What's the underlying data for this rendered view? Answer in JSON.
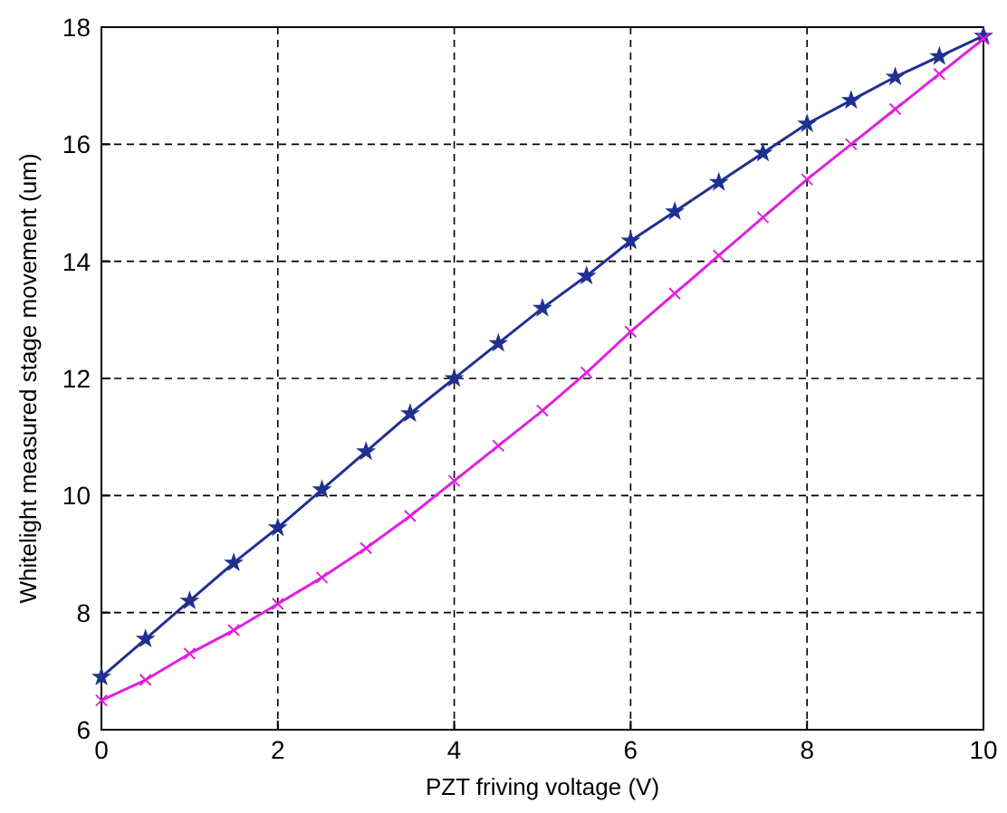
{
  "chart_data": {
    "type": "line",
    "xlabel": "PZT friving voltage (V)",
    "ylabel": "Whitelight measured stage movement (um)",
    "x": [
      0,
      0.5,
      1,
      1.5,
      2,
      2.5,
      3,
      3.5,
      4,
      4.5,
      5,
      5.5,
      6,
      6.5,
      7,
      7.5,
      8,
      8.5,
      9,
      9.5,
      10
    ],
    "series": [
      {
        "color": "#203090",
        "marker": "star",
        "values": [
          6.9,
          7.55,
          8.2,
          8.85,
          9.45,
          10.1,
          10.75,
          11.4,
          12.0,
          12.6,
          13.2,
          13.75,
          14.35,
          14.85,
          15.35,
          15.85,
          16.35,
          16.75,
          17.15,
          17.5,
          17.85
        ]
      },
      {
        "color": "#e020e0",
        "marker": "cross",
        "values": [
          6.5,
          6.85,
          7.3,
          7.7,
          8.15,
          8.6,
          9.1,
          9.65,
          10.25,
          10.85,
          11.45,
          12.1,
          12.8,
          13.45,
          14.1,
          14.75,
          15.4,
          16.0,
          16.6,
          17.2,
          17.8
        ]
      }
    ],
    "xlim": [
      0,
      10
    ],
    "xticks": [
      0,
      2,
      4,
      6,
      8,
      10
    ],
    "ylim": [
      6,
      18
    ],
    "yticks": [
      6,
      8,
      10,
      12,
      14,
      16,
      18
    ],
    "grid": true,
    "line_style": "solid"
  }
}
